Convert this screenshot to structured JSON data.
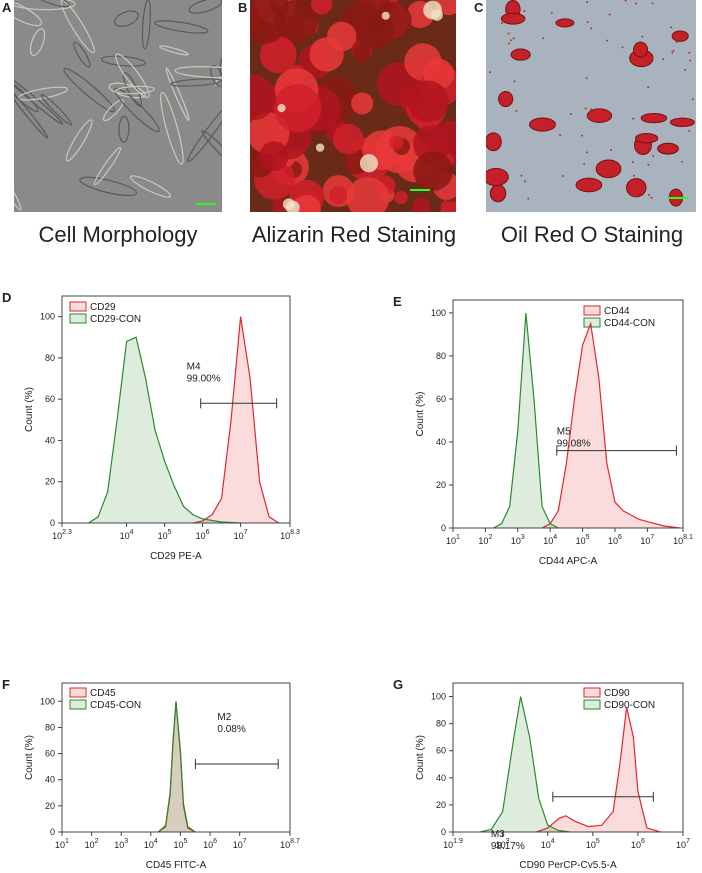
{
  "figure": {
    "panels": [
      {
        "letter": "A",
        "caption": "Cell Morphology"
      },
      {
        "letter": "B",
        "caption": "Alizarin Red Staining"
      },
      {
        "letter": "C",
        "caption": "Oil Red O Staining"
      }
    ]
  },
  "chart_data": [
    {
      "type": "line",
      "panel": "D",
      "xscale": "log",
      "ylabel": "Count  (%)",
      "xlabel": "CD29 PE-A",
      "legend": "upper left",
      "xlim": [
        199.5,
        199526231
      ],
      "ylim": [
        0,
        110
      ],
      "yticks": [
        0,
        20,
        40,
        60,
        80,
        100
      ],
      "xticks": [
        {
          "value": 199.5,
          "label": "10",
          "exponent": "2.3"
        },
        {
          "value": 10000.0,
          "label": "10",
          "exponent": "4"
        },
        {
          "value": 100000.0,
          "label": "10",
          "exponent": "5"
        },
        {
          "value": 1000000.0,
          "label": "10",
          "exponent": "6"
        },
        {
          "value": 10000000.0,
          "label": "10",
          "exponent": "7"
        },
        {
          "value": 199526231,
          "label": "10",
          "exponent": "8.3"
        }
      ],
      "series": [
        {
          "name": "CD29",
          "color": "#e3262c",
          "x": [
            562000.0,
            1000000.0,
            1780000.0,
            3160000.0,
            5620000.0,
            10000000.0,
            17800000.0,
            31600000.0,
            56200000.0,
            100000000.0
          ],
          "values": [
            0,
            1,
            4,
            12,
            50,
            100,
            70,
            20,
            3,
            0
          ]
        },
        {
          "name": "CD29-CON",
          "color": "#2c8a2c",
          "x": [
            1000.0,
            1780.0,
            3160.0,
            5620.0,
            10000.0,
            17800.0,
            31600.0,
            56200.0,
            100000.0,
            178000.0,
            316000.0,
            562000.0,
            1000000.0,
            3160000.0,
            10000000.0
          ],
          "values": [
            0,
            3,
            15,
            50,
            88,
            90,
            70,
            45,
            30,
            18,
            8,
            4,
            2,
            0.5,
            0
          ]
        }
      ],
      "gate": {
        "label": "M4",
        "percent": "99.00%",
        "x": [
          890000.0,
          89000000.0
        ],
        "y": 58
      }
    },
    {
      "type": "line",
      "panel": "E",
      "xscale": "log",
      "ylabel": "Count  (%)",
      "xlabel": "CD44 APC-A",
      "legend": "upper right",
      "xlim": [
        10,
        125892541
      ],
      "ylim": [
        0,
        106
      ],
      "yticks": [
        0,
        20,
        40,
        60,
        80,
        100
      ],
      "xticks": [
        {
          "value": 10,
          "label": "10",
          "exponent": "1"
        },
        {
          "value": 100,
          "label": "10",
          "exponent": "2"
        },
        {
          "value": 1000.0,
          "label": "10",
          "exponent": "3"
        },
        {
          "value": 10000.0,
          "label": "10",
          "exponent": "4"
        },
        {
          "value": 100000.0,
          "label": "10",
          "exponent": "5"
        },
        {
          "value": 1000000.0,
          "label": "10",
          "exponent": "6"
        },
        {
          "value": 10000000.0,
          "label": "10",
          "exponent": "7"
        },
        {
          "value": 125892541,
          "label": "10",
          "exponent": "8.1"
        }
      ],
      "series": [
        {
          "name": "CD44",
          "color": "#e3262c",
          "x": [
            5620.0,
            10000.0,
            17800.0,
            31600.0,
            56200.0,
            100000.0,
            178000.0,
            316000.0,
            562000.0,
            1000000.0,
            1780000.0,
            3160000.0,
            5620000.0,
            10000000.0,
            31600000.0,
            100000000.0
          ],
          "values": [
            0,
            2,
            8,
            30,
            60,
            85,
            95,
            70,
            30,
            12,
            8,
            6,
            4,
            3,
            1,
            0
          ]
        },
        {
          "name": "CD44-CON",
          "color": "#2c8a2c",
          "x": [
            178,
            316,
            562,
            1000.0,
            1780.0,
            3160.0,
            5620.0,
            10000.0,
            17800.0
          ],
          "values": [
            0,
            2,
            10,
            45,
            100,
            60,
            10,
            2,
            0
          ]
        }
      ],
      "gate": {
        "label": "M5",
        "percent": "99.08%",
        "x": [
          16000.0,
          79000000.0
        ],
        "y": 36
      }
    },
    {
      "type": "line",
      "panel": "F",
      "xscale": "log",
      "ylabel": "Count  (%)",
      "xlabel": "CD45 FITC-A",
      "legend": "upper left",
      "xlim": [
        10,
        501187234
      ],
      "ylim": [
        0,
        114
      ],
      "yticks": [
        0,
        20,
        40,
        60,
        80,
        100
      ],
      "xticks": [
        {
          "value": 10,
          "label": "10",
          "exponent": "1"
        },
        {
          "value": 100,
          "label": "10",
          "exponent": "2"
        },
        {
          "value": 1000.0,
          "label": "10",
          "exponent": "3"
        },
        {
          "value": 10000.0,
          "label": "10",
          "exponent": "4"
        },
        {
          "value": 100000.0,
          "label": "10",
          "exponent": "5"
        },
        {
          "value": 1000000.0,
          "label": "10",
          "exponent": "6"
        },
        {
          "value": 10000000.0,
          "label": "10",
          "exponent": "7"
        },
        {
          "value": 501187234,
          "label": "10",
          "exponent": "8.7"
        }
      ],
      "series": [
        {
          "name": "CD45",
          "color": "#e3262c",
          "x": [
            17800.0,
            31600.0,
            44700.0,
            56200.0,
            70800.0,
            100000.0,
            126000.0,
            178000.0,
            316000.0
          ],
          "values": [
            0,
            5,
            30,
            70,
            100,
            60,
            20,
            3,
            0
          ]
        },
        {
          "name": "CD45-CON",
          "color": "#2c8a2c",
          "x": [
            17800.0,
            31600.0,
            44700.0,
            56200.0,
            70800.0,
            100000.0,
            126000.0,
            178000.0,
            316000.0
          ],
          "values": [
            0,
            4,
            28,
            68,
            99,
            62,
            22,
            4,
            0
          ]
        }
      ],
      "gate": {
        "label": "M2",
        "percent": "0.08%",
        "x": [
          320000.0,
          200000000.0
        ],
        "y": 52
      }
    },
    {
      "type": "line",
      "panel": "G",
      "xscale": "log",
      "ylabel": "Count  (%)",
      "xlabel": "CD90 PerCP-Cy5.5-A",
      "legend": "upper right",
      "xlim": [
        79.4,
        10000000.0
      ],
      "ylim": [
        0,
        110
      ],
      "yticks": [
        0,
        20,
        40,
        60,
        80,
        100
      ],
      "xticks": [
        {
          "value": 79.4,
          "label": "10",
          "exponent": "1.9"
        },
        {
          "value": 1000.0,
          "label": "10",
          "exponent": "3"
        },
        {
          "value": 10000.0,
          "label": "10",
          "exponent": "4"
        },
        {
          "value": 100000.0,
          "label": "10",
          "exponent": "5"
        },
        {
          "value": 1000000.0,
          "label": "10",
          "exponent": "6"
        },
        {
          "value": 10000000.0,
          "label": "10",
          "exponent": "7"
        }
      ],
      "series": [
        {
          "name": "CD90",
          "color": "#e3262c",
          "x": [
            5620.0,
            10000.0,
            17800.0,
            25100.0,
            39800.0,
            79400.0,
            158000.0,
            282000.0,
            398000.0,
            562000.0,
            794000.0,
            1000000.0,
            1580000.0,
            3160000.0
          ],
          "values": [
            0,
            3,
            10,
            12,
            8,
            4,
            5,
            15,
            50,
            92,
            70,
            30,
            3,
            0
          ]
        },
        {
          "name": "CD90-CON",
          "color": "#2c8a2c",
          "x": [
            316,
            562,
            1000.0,
            1780.0,
            2510.0,
            3980.0,
            6310.0,
            10000.0,
            17800.0,
            31600.0
          ],
          "values": [
            0,
            2,
            15,
            70,
            100,
            70,
            25,
            5,
            1,
            0
          ]
        }
      ],
      "gate": {
        "label": "M3",
        "percent": "98.17%",
        "x": [
          13000.0,
          2200000.0
        ],
        "y": 26
      }
    }
  ]
}
